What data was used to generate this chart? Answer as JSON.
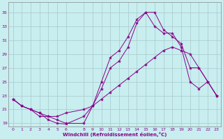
{
  "xlabel": "Windchill (Refroidissement éolien,°C)",
  "ylabel": "",
  "bg_color": "#c8eef0",
  "grid_color": "#a8c8cc",
  "line_color": "#880088",
  "ylim": [
    18.5,
    36.5
  ],
  "xlim": [
    -0.5,
    23.5
  ],
  "yticks": [
    19,
    21,
    23,
    25,
    27,
    29,
    31,
    33,
    35
  ],
  "xticks": [
    0,
    1,
    2,
    3,
    4,
    5,
    6,
    8,
    9,
    10,
    11,
    12,
    13,
    14,
    15,
    16,
    17,
    18,
    19,
    20,
    21,
    22,
    23
  ],
  "line1_x": [
    0,
    1,
    2,
    3,
    4,
    5,
    6,
    8,
    9,
    10,
    11,
    12,
    13,
    14,
    15,
    16,
    17,
    18,
    19,
    20,
    21,
    22,
    23
  ],
  "line1_y": [
    22.5,
    21.5,
    21.0,
    20.0,
    20.0,
    19.5,
    19.0,
    19.0,
    21.5,
    25.0,
    28.5,
    29.5,
    31.5,
    34.0,
    35.0,
    35.0,
    32.5,
    31.5,
    30.5,
    27.0,
    27.0,
    25.0,
    23.0
  ],
  "line2_x": [
    0,
    1,
    2,
    3,
    4,
    5,
    6,
    8,
    9,
    10,
    11,
    12,
    13,
    14,
    15,
    16,
    17,
    18,
    19,
    20,
    21,
    22,
    23
  ],
  "line2_y": [
    22.5,
    21.5,
    21.0,
    20.5,
    19.5,
    19.0,
    18.9,
    20.0,
    21.5,
    24.0,
    27.0,
    28.0,
    30.0,
    33.5,
    35.0,
    33.0,
    32.0,
    32.0,
    30.0,
    25.0,
    24.0,
    25.0,
    23.0
  ],
  "line3_x": [
    0,
    1,
    2,
    3,
    4,
    5,
    6,
    8,
    9,
    10,
    11,
    12,
    13,
    14,
    15,
    16,
    17,
    18,
    19,
    20,
    21,
    22,
    23
  ],
  "line3_y": [
    22.5,
    21.5,
    21.0,
    20.5,
    20.0,
    20.0,
    20.5,
    21.0,
    21.5,
    22.5,
    23.5,
    24.5,
    25.5,
    26.5,
    27.5,
    28.5,
    29.5,
    30.0,
    29.5,
    29.0,
    27.0,
    25.0,
    23.0
  ]
}
